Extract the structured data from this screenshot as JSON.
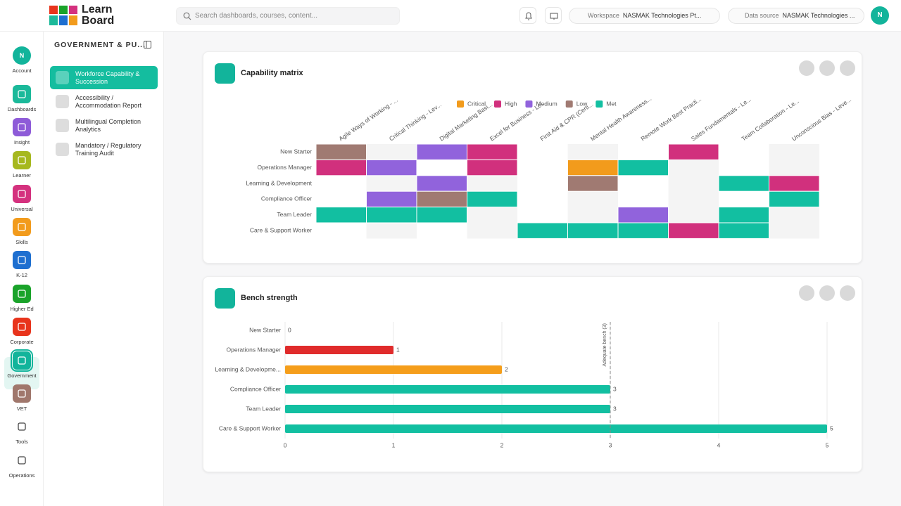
{
  "logo": {
    "line1": "Learn",
    "line2": "Board"
  },
  "search": {
    "placeholder": "Search dashboards, courses, content..."
  },
  "workspace": {
    "label": "Workspace",
    "value": "NASMAK Technologies Pt..."
  },
  "datasource": {
    "label": "Data source",
    "value": "NASMAK Technologies ..."
  },
  "user": {
    "initial": "N"
  },
  "nav": [
    {
      "label": "Account",
      "color": "#12b49b"
    },
    {
      "label": "Dashboards",
      "color": "#1bb99a"
    },
    {
      "label": "Insight",
      "color": "#8e5bd8"
    },
    {
      "label": "Learner",
      "color": "#a6b81f"
    },
    {
      "label": "Universal",
      "color": "#d4317e"
    },
    {
      "label": "Skills",
      "color": "#f29b1c"
    },
    {
      "label": "K-12",
      "color": "#1e6fd0"
    },
    {
      "label": "Higher Ed",
      "color": "#1aa32a"
    },
    {
      "label": "Corporate",
      "color": "#e8341c"
    },
    {
      "label": "Government",
      "color": "#12b49b"
    },
    {
      "label": "VET",
      "color": "#a0776c"
    },
    {
      "label": "Tools",
      "color": null
    },
    {
      "label": "Operations",
      "color": null
    }
  ],
  "nav_active": 9,
  "panel": {
    "title": "GOVERNMENT & PU...",
    "reports": [
      "Workforce Capability & Succession",
      "Accessibility / Accommodation Report",
      "Multilingual Completion Analytics",
      "Mandatory / Regulatory Training Audit"
    ],
    "active": 0
  },
  "chart_data": [
    {
      "type": "heatmap",
      "title": "Capability matrix",
      "levels": [
        {
          "name": "Critical",
          "color": "#f29b1c"
        },
        {
          "name": "High",
          "color": "#d1307d"
        },
        {
          "name": "Medium",
          "color": "#9163dc"
        },
        {
          "name": "Low",
          "color": "#a07a72"
        },
        {
          "name": "Met",
          "color": "#12bfa1"
        }
      ],
      "columns": [
        "Agile Ways of Working - ...",
        "Critical Thinking - Lev...",
        "Digital Marketing Basi...",
        "Excel for Business - Le...",
        "First Aid & CPR (Certi...",
        "Mental Health Awareness...",
        "Remote Work Best Practi...",
        "Sales Fundamentals - Le...",
        "Team Collaboration - Le...",
        "Unconscious Bias - Leve..."
      ],
      "rows": [
        "New Starter",
        "Operations Manager",
        "Learning & Development",
        "Compliance Officer",
        "Team Leader",
        "Care & Support Worker"
      ],
      "values": [
        [
          "Low",
          null,
          "Medium",
          "High",
          null,
          null,
          null,
          "High",
          null,
          null
        ],
        [
          "High",
          "Medium",
          null,
          "High",
          null,
          "Critical",
          "Met",
          null,
          null,
          null
        ],
        [
          null,
          null,
          "Medium",
          null,
          null,
          "Low",
          null,
          null,
          "Met",
          "High"
        ],
        [
          null,
          "Medium",
          "Low",
          "Met",
          null,
          null,
          null,
          null,
          null,
          "Met"
        ],
        [
          "Met",
          "Met",
          "Met",
          null,
          null,
          null,
          "Medium",
          null,
          "Met",
          null
        ],
        [
          null,
          null,
          null,
          null,
          "Met",
          "Met",
          "Met",
          "High",
          "Met",
          null
        ]
      ]
    },
    {
      "type": "hbar",
      "title": "Bench strength",
      "categories": [
        "New Starter",
        "Operations Manager",
        "Learning & Developme...",
        "Compliance Officer",
        "Team Leader",
        "Care & Support Worker"
      ],
      "values": [
        0,
        1,
        2,
        3,
        3,
        5
      ],
      "colors": [
        "#12bfa1",
        "#e02b2b",
        "#f59e1b",
        "#12bfa1",
        "#12bfa1",
        "#12bfa1"
      ],
      "xlim": [
        0,
        5
      ],
      "xticks": [
        0,
        1,
        2,
        3,
        4,
        5
      ],
      "grid": true,
      "reference": {
        "value": 3,
        "label": "Adequate bench (3)"
      }
    }
  ]
}
